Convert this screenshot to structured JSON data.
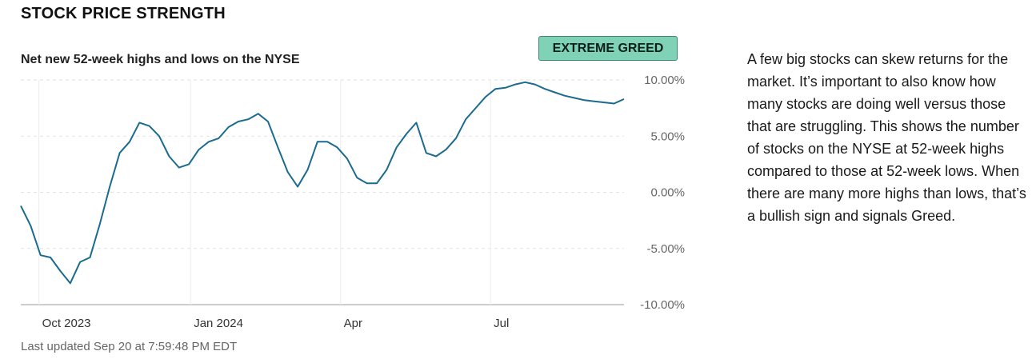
{
  "section_title": "STOCK PRICE STRENGTH",
  "badge": {
    "label": "EXTREME GREED",
    "color": "#7fd2b6"
  },
  "description": "A few big stocks can skew returns for the market. It’s important to also know how many stocks are doing well versus those that are struggling. This shows the number of stocks on the NYSE at 52-week highs compared to those at 52-week lows. When there are many more highs than lows, that’s a bullish sign and signals Greed.",
  "last_updated": "Last updated Sep 20 at 7:59:48 PM EDT",
  "chart_data": {
    "type": "line",
    "title": "Net new 52-week highs and lows on the NYSE",
    "xlabel": "",
    "ylabel": "",
    "ylim": [
      -10,
      10
    ],
    "xlim": [
      "2023-09-20",
      "2024-09-20"
    ],
    "y_ticks": [
      "10.00%",
      "5.00%",
      "0.00%",
      "-5.00%",
      "-10.00%"
    ],
    "x_ticks": [
      {
        "label": "Oct 2023",
        "date": "2023-10-01"
      },
      {
        "label": "Jan 2024",
        "date": "2024-01-01"
      },
      {
        "label": "Apr",
        "date": "2024-04-01"
      },
      {
        "label": "Jul",
        "date": "2024-07-01"
      }
    ],
    "grid": true,
    "line_color": "#1b6a8f",
    "series": [
      {
        "x": [
          "2023-09-20",
          "2023-09-26",
          "2023-10-02",
          "2023-10-08",
          "2023-10-14",
          "2023-10-20",
          "2023-10-26",
          "2023-11-01",
          "2023-11-07",
          "2023-11-13",
          "2023-11-19",
          "2023-11-25",
          "2023-12-01",
          "2023-12-07",
          "2023-12-13",
          "2023-12-19",
          "2023-12-25",
          "2023-12-31",
          "2024-01-06",
          "2024-01-12",
          "2024-01-18",
          "2024-01-24",
          "2024-01-30",
          "2024-02-05",
          "2024-02-11",
          "2024-02-17",
          "2024-02-23",
          "2024-02-29",
          "2024-03-06",
          "2024-03-12",
          "2024-03-18",
          "2024-03-24",
          "2024-03-30",
          "2024-04-05",
          "2024-04-11",
          "2024-04-17",
          "2024-04-23",
          "2024-04-29",
          "2024-05-05",
          "2024-05-11",
          "2024-05-17",
          "2024-05-23",
          "2024-05-29",
          "2024-06-04",
          "2024-06-10",
          "2024-06-16",
          "2024-06-22",
          "2024-06-28",
          "2024-07-04",
          "2024-07-10",
          "2024-07-16",
          "2024-07-22",
          "2024-07-28",
          "2024-08-03",
          "2024-08-09",
          "2024-08-15",
          "2024-08-21",
          "2024-08-27",
          "2024-09-02",
          "2024-09-08",
          "2024-09-14",
          "2024-09-20"
        ],
        "y": [
          -1.2,
          -3.0,
          -5.6,
          -5.8,
          -7.0,
          -8.1,
          -6.2,
          -5.8,
          -2.8,
          0.5,
          3.5,
          4.5,
          6.2,
          5.9,
          5.0,
          3.2,
          2.2,
          2.5,
          3.8,
          4.5,
          4.8,
          5.8,
          6.3,
          6.5,
          7.0,
          6.3,
          4.0,
          1.8,
          0.5,
          2.0,
          4.5,
          4.5,
          4.0,
          3.0,
          1.3,
          0.8,
          0.8,
          2.0,
          4.0,
          5.2,
          6.2,
          3.5,
          3.2,
          3.8,
          4.8,
          6.5,
          7.5,
          8.5,
          9.2,
          9.3,
          9.6,
          9.8,
          9.6,
          9.2,
          8.9,
          8.6,
          8.4,
          8.2,
          8.1,
          8.0,
          7.9,
          8.3
        ]
      }
    ]
  }
}
